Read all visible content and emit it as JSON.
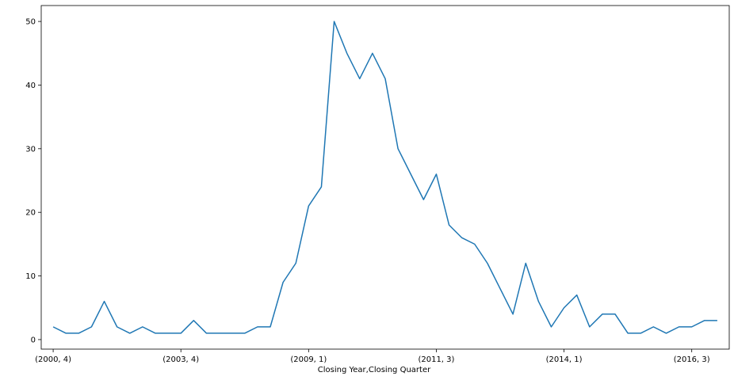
{
  "chart_data": {
    "type": "line",
    "xlabel": "Closing Year,Closing Quarter",
    "ylabel": "",
    "ylim": [
      -1.5,
      52.5
    ],
    "yticks": [
      0,
      10,
      20,
      30,
      40,
      50
    ],
    "grid": false,
    "legend": false,
    "xtick_labels": [
      {
        "index": 0,
        "label": "(2000, 4)"
      },
      {
        "index": 10,
        "label": "(2003, 4)"
      },
      {
        "index": 20,
        "label": "(2009, 1)"
      },
      {
        "index": 30,
        "label": "(2011, 3)"
      },
      {
        "index": 40,
        "label": "(2014, 1)"
      },
      {
        "index": 50,
        "label": "(2016, 3)"
      }
    ],
    "series": [
      {
        "color": "#1f77b4",
        "values": [
          2,
          1,
          1,
          2,
          6,
          2,
          1,
          2,
          1,
          1,
          1,
          3,
          1,
          1,
          1,
          1,
          2,
          2,
          9,
          12,
          21,
          24,
          50,
          45,
          41,
          45,
          41,
          30,
          26,
          22,
          26,
          18,
          16,
          15,
          12,
          8,
          4,
          12,
          6,
          2,
          5,
          7,
          2,
          4,
          4,
          1,
          1,
          2,
          1,
          2,
          2,
          3,
          3
        ]
      }
    ]
  }
}
